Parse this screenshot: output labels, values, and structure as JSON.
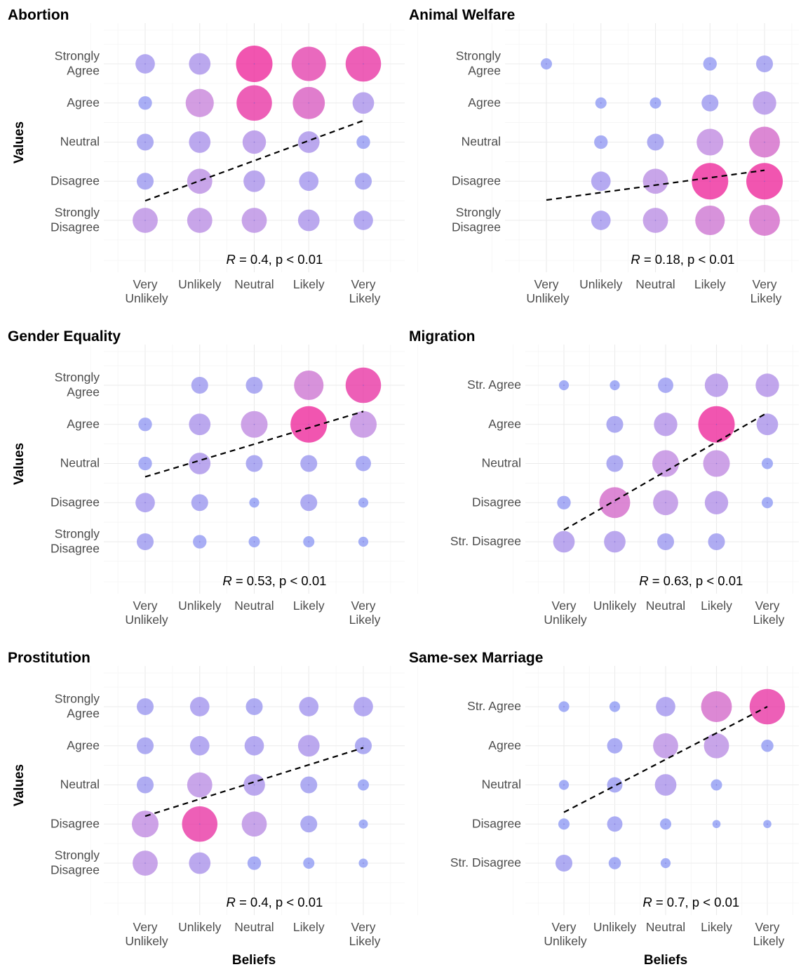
{
  "figure": {
    "y_axis_label": "Values",
    "x_axis_label": "Beliefs"
  },
  "colors": {
    "low": "#8c9cf5",
    "mid": "#c58ae0",
    "high": "#ee2a9c",
    "fit_line": "#000000"
  },
  "chart_data": [
    {
      "type": "scatter",
      "title": "Abortion",
      "annotation": {
        "r_label": "R",
        "rest": " = 0.4, p < 0.01"
      },
      "x_categories": [
        "Very\nUnlikely",
        "Unlikely",
        "Neutral",
        "Likely",
        "Very\nLikely"
      ],
      "y_categories": [
        "Strongly\nDisagree",
        "Disagree",
        "Neutral",
        "Agree",
        "Strongly\nAgree"
      ],
      "counts": [
        [
          6,
          6,
          6,
          4,
          3
        ],
        [
          2,
          6,
          4,
          3,
          2
        ],
        [
          2,
          4,
          5,
          4,
          1
        ],
        [
          1,
          8,
          14,
          11,
          4
        ],
        [
          3,
          4,
          15,
          13,
          14
        ]
      ],
      "fit": {
        "x0": 1,
        "y0": 1.5,
        "x1": 5,
        "y1": 3.55
      }
    },
    {
      "type": "scatter",
      "title": "Animal Welfare",
      "annotation": {
        "r_label": "R",
        "rest": " = 0.18, p < 0.01"
      },
      "x_categories": [
        "Very\nUnlikely",
        "Unlikely",
        "Neutral",
        "Likely",
        "Very\nLikely"
      ],
      "y_categories": [
        "Strongly\nDisagree",
        "Disagree",
        "Neutral",
        "Agree",
        "Strongly\nAgree"
      ],
      "counts": [
        [
          0,
          3,
          6,
          9,
          10
        ],
        [
          0,
          3,
          6,
          15,
          15
        ],
        [
          0,
          1,
          2,
          7,
          10
        ],
        [
          0,
          0.5,
          0.5,
          2,
          5
        ],
        [
          0.5,
          0,
          0,
          1,
          2
        ]
      ],
      "fit": {
        "x0": 1,
        "y0": 1.52,
        "x1": 5,
        "y1": 2.28
      }
    },
    {
      "type": "scatter",
      "title": "Gender Equality",
      "annotation": {
        "r_label": "R",
        "rest": " = 0.53, p < 0.01"
      },
      "x_categories": [
        "Very\nUnlikely",
        "Unlikely",
        "Neutral",
        "Likely",
        "Very\nLikely"
      ],
      "y_categories": [
        "Strongly\nDisagree",
        "Disagree",
        "Neutral",
        "Agree",
        "Strongly\nAgree"
      ],
      "counts": [
        [
          2,
          1,
          0.5,
          0.5,
          0.3
        ],
        [
          3,
          2,
          0.3,
          2,
          0.3
        ],
        [
          1,
          4,
          2,
          2,
          1.5
        ],
        [
          1,
          4,
          7,
          15,
          7
        ],
        [
          0,
          2,
          2,
          9,
          14
        ]
      ],
      "fit": {
        "x0": 1,
        "y0": 2.66,
        "x1": 5,
        "y1": 4.33
      }
    },
    {
      "type": "scatter",
      "title": "Migration",
      "annotation": {
        "r_label": "R",
        "rest": " = 0.63, p < 0.01"
      },
      "x_categories": [
        "Very\nUnlikely",
        "Unlikely",
        "Neutral",
        "Likely",
        "Very\nLikely"
      ],
      "y_categories": [
        "Str. Disagree",
        "Disagree",
        "Neutral",
        "Agree",
        "Str. Agree"
      ],
      "counts": [
        [
          4,
          4,
          2,
          2,
          0
        ],
        [
          1,
          10,
          6,
          5,
          0.5
        ],
        [
          0,
          2,
          7,
          7,
          0.5
        ],
        [
          0,
          2,
          5,
          15,
          4
        ],
        [
          0.3,
          0.3,
          1.5,
          5,
          5
        ]
      ],
      "fit": {
        "x0": 1,
        "y0": 1.3,
        "x1": 5,
        "y1": 4.3
      }
    },
    {
      "type": "scatter",
      "title": "Prostitution",
      "annotation": {
        "r_label": "R",
        "rest": " = 0.4, p < 0.01"
      },
      "x_categories": [
        "Very\nUnlikely",
        "Unlikely",
        "Neutral",
        "Likely",
        "Very\nLikely"
      ],
      "y_categories": [
        "Strongly\nDisagree",
        "Disagree",
        "Neutral",
        "Agree",
        "Strongly\nAgree"
      ],
      "counts": [
        [
          6,
          4,
          1,
          0.5,
          0.2
        ],
        [
          7,
          14,
          6,
          2,
          0.2
        ],
        [
          2,
          6,
          4,
          2,
          0.5
        ],
        [
          2,
          3,
          3,
          4,
          2
        ],
        [
          2,
          3,
          2,
          3,
          3
        ]
      ],
      "fit": {
        "x0": 1,
        "y0": 2.2,
        "x1": 5,
        "y1": 3.95
      }
    },
    {
      "type": "scatter",
      "title": "Same-sex Marriage",
      "annotation": {
        "r_label": "R",
        "rest": " = 0.7, p < 0.01"
      },
      "x_categories": [
        "Very\nUnlikely",
        "Unlikely",
        "Neutral",
        "Likely",
        "Very\nLikely"
      ],
      "y_categories": [
        "Str. Disagree",
        "Disagree",
        "Neutral",
        "Agree",
        "Str. Agree"
      ],
      "counts": [
        [
          2,
          0.7,
          0.3,
          0,
          0
        ],
        [
          0.5,
          1.5,
          0.5,
          0.1,
          0.1
        ],
        [
          0.3,
          1.5,
          4,
          0.5,
          0
        ],
        [
          0,
          1.5,
          6,
          6,
          0.7
        ],
        [
          0.4,
          0.4,
          3,
          10,
          14
        ]
      ],
      "fit": {
        "x0": 1,
        "y0": 2.3,
        "x1": 5,
        "y1": 5.0
      }
    }
  ]
}
